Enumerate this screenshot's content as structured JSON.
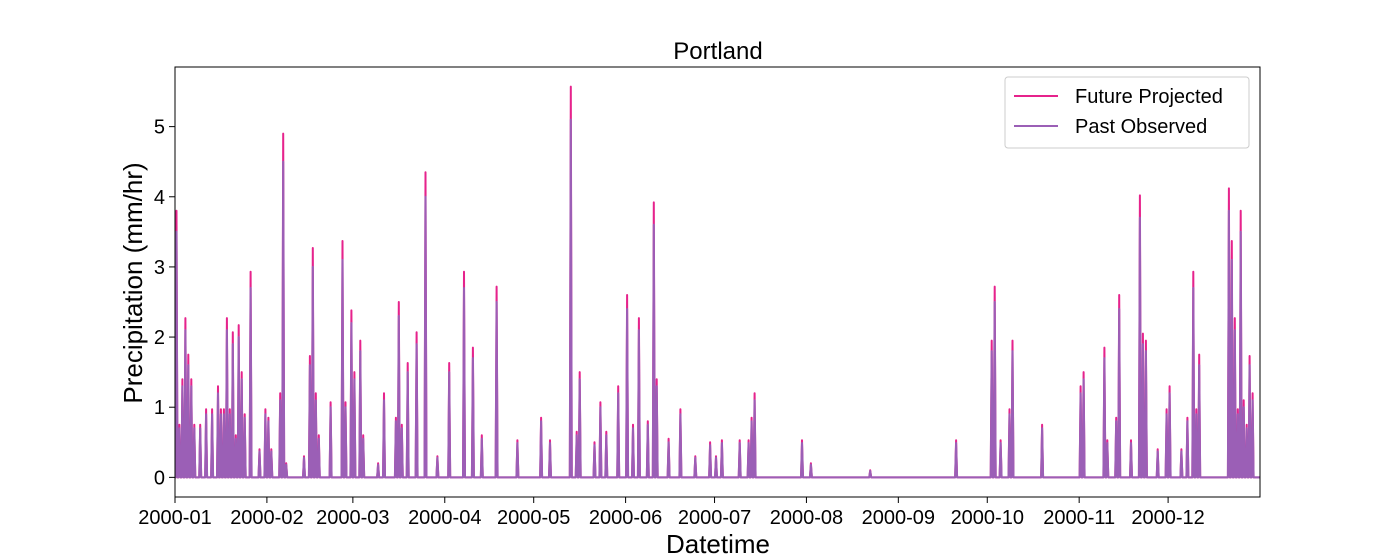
{
  "chart_data": {
    "type": "line",
    "title": "Portland",
    "xlabel": "Datetime",
    "ylabel": "Precipitation (mm/hr)",
    "xlim": [
      "2000-01-01",
      "2000-12-31"
    ],
    "ylim": [
      -0.28,
      5.85
    ],
    "x_tick_labels": [
      "2000-01",
      "2000-02",
      "2000-03",
      "2000-04",
      "2000-05",
      "2000-06",
      "2000-07",
      "2000-08",
      "2000-09",
      "2000-10",
      "2000-11",
      "2000-12"
    ],
    "y_ticks": [
      0,
      1,
      2,
      3,
      4,
      5
    ],
    "grid": false,
    "legend_position": "top-right",
    "series": [
      {
        "name": "Future Projected",
        "color": "#e6238c",
        "points": [
          [
            "2000-01-01",
            3.8
          ],
          [
            "2000-01-02",
            0.75
          ],
          [
            "2000-01-03",
            1.4
          ],
          [
            "2000-01-04",
            2.27
          ],
          [
            "2000-01-05",
            1.75
          ],
          [
            "2000-01-06",
            1.4
          ],
          [
            "2000-01-07",
            0.75
          ],
          [
            "2000-01-09",
            0.75
          ],
          [
            "2000-01-11",
            0.97
          ],
          [
            "2000-01-13",
            0.97
          ],
          [
            "2000-01-15",
            1.3
          ],
          [
            "2000-01-16",
            0.97
          ],
          [
            "2000-01-17",
            0.97
          ],
          [
            "2000-01-18",
            2.27
          ],
          [
            "2000-01-19",
            0.97
          ],
          [
            "2000-01-20",
            2.07
          ],
          [
            "2000-01-21",
            0.6
          ],
          [
            "2000-01-22",
            2.17
          ],
          [
            "2000-01-23",
            1.5
          ],
          [
            "2000-01-24",
            0.9
          ],
          [
            "2000-01-26",
            2.93
          ],
          [
            "2000-01-29",
            0.4
          ],
          [
            "2000-01-31",
            0.97
          ],
          [
            "2000-02-01",
            0.85
          ],
          [
            "2000-02-02",
            0.4
          ],
          [
            "2000-02-05",
            1.2
          ],
          [
            "2000-02-06",
            4.9
          ],
          [
            "2000-02-07",
            0.2
          ],
          [
            "2000-02-13",
            0.3
          ],
          [
            "2000-02-15",
            1.73
          ],
          [
            "2000-02-16",
            3.27
          ],
          [
            "2000-02-17",
            1.2
          ],
          [
            "2000-02-18",
            0.6
          ],
          [
            "2000-02-22",
            1.07
          ],
          [
            "2000-02-26",
            3.37
          ],
          [
            "2000-02-27",
            1.07
          ],
          [
            "2000-02-29",
            2.38
          ],
          [
            "2000-03-01",
            1.5
          ],
          [
            "2000-03-03",
            1.95
          ],
          [
            "2000-03-04",
            0.6
          ],
          [
            "2000-03-09",
            0.2
          ],
          [
            "2000-03-11",
            1.2
          ],
          [
            "2000-03-15",
            0.85
          ],
          [
            "2000-03-16",
            2.5
          ],
          [
            "2000-03-17",
            0.75
          ],
          [
            "2000-03-19",
            1.63
          ],
          [
            "2000-03-22",
            2.07
          ],
          [
            "2000-03-25",
            4.35
          ],
          [
            "2000-03-29",
            0.3
          ],
          [
            "2000-04-02",
            1.63
          ],
          [
            "2000-04-07",
            2.93
          ],
          [
            "2000-04-10",
            1.85
          ],
          [
            "2000-04-13",
            0.6
          ],
          [
            "2000-04-18",
            2.72
          ],
          [
            "2000-04-25",
            0.53
          ],
          [
            "2000-05-03",
            0.85
          ],
          [
            "2000-05-06",
            0.53
          ],
          [
            "2000-05-13",
            5.57
          ],
          [
            "2000-05-15",
            0.65
          ],
          [
            "2000-05-16",
            1.5
          ],
          [
            "2000-05-21",
            0.5
          ],
          [
            "2000-05-23",
            1.07
          ],
          [
            "2000-05-25",
            0.65
          ],
          [
            "2000-05-29",
            1.3
          ],
          [
            "2000-06-01",
            2.6
          ],
          [
            "2000-06-03",
            0.75
          ],
          [
            "2000-06-05",
            2.27
          ],
          [
            "2000-06-08",
            0.8
          ],
          [
            "2000-06-10",
            3.92
          ],
          [
            "2000-06-11",
            1.4
          ],
          [
            "2000-06-15",
            0.55
          ],
          [
            "2000-06-19",
            0.97
          ],
          [
            "2000-06-24",
            0.3
          ],
          [
            "2000-06-29",
            0.5
          ],
          [
            "2000-07-01",
            0.3
          ],
          [
            "2000-07-03",
            0.53
          ],
          [
            "2000-07-09",
            0.53
          ],
          [
            "2000-07-12",
            0.53
          ],
          [
            "2000-07-13",
            0.85
          ],
          [
            "2000-07-14",
            1.2
          ],
          [
            "2000-07-30",
            0.53
          ],
          [
            "2000-08-02",
            0.2
          ],
          [
            "2000-08-22",
            0.1
          ],
          [
            "2000-09-20",
            0.53
          ],
          [
            "2000-10-02",
            1.95
          ],
          [
            "2000-10-03",
            2.72
          ],
          [
            "2000-10-05",
            0.53
          ],
          [
            "2000-10-08",
            0.97
          ],
          [
            "2000-10-09",
            1.95
          ],
          [
            "2000-10-19",
            0.75
          ],
          [
            "2000-11-01",
            1.3
          ],
          [
            "2000-11-02",
            1.5
          ],
          [
            "2000-11-09",
            1.85
          ],
          [
            "2000-11-10",
            0.53
          ],
          [
            "2000-11-13",
            0.85
          ],
          [
            "2000-11-14",
            2.6
          ],
          [
            "2000-11-18",
            0.53
          ],
          [
            "2000-11-21",
            4.02
          ],
          [
            "2000-11-22",
            2.05
          ],
          [
            "2000-11-23",
            1.95
          ],
          [
            "2000-11-27",
            0.4
          ],
          [
            "2000-11-30",
            0.97
          ],
          [
            "2000-12-01",
            1.3
          ],
          [
            "2000-12-05",
            0.4
          ],
          [
            "2000-12-07",
            0.85
          ],
          [
            "2000-12-09",
            2.93
          ],
          [
            "2000-12-10",
            0.97
          ],
          [
            "2000-12-11",
            1.75
          ],
          [
            "2000-12-21",
            4.12
          ],
          [
            "2000-12-22",
            3.37
          ],
          [
            "2000-12-23",
            2.27
          ],
          [
            "2000-12-24",
            0.97
          ],
          [
            "2000-12-25",
            3.8
          ],
          [
            "2000-12-26",
            1.1
          ],
          [
            "2000-12-27",
            0.75
          ],
          [
            "2000-12-28",
            1.73
          ],
          [
            "2000-12-29",
            1.2
          ]
        ]
      },
      {
        "name": "Past Observed",
        "color": "#9b5fb6",
        "points": [
          [
            "2000-01-01",
            3.5
          ],
          [
            "2000-01-02",
            0.7
          ],
          [
            "2000-01-03",
            1.3
          ],
          [
            "2000-01-04",
            2.1
          ],
          [
            "2000-01-05",
            1.6
          ],
          [
            "2000-01-06",
            1.3
          ],
          [
            "2000-01-07",
            0.7
          ],
          [
            "2000-01-09",
            0.7
          ],
          [
            "2000-01-11",
            0.9
          ],
          [
            "2000-01-13",
            0.9
          ],
          [
            "2000-01-15",
            1.2
          ],
          [
            "2000-01-16",
            0.9
          ],
          [
            "2000-01-17",
            0.9
          ],
          [
            "2000-01-18",
            2.1
          ],
          [
            "2000-01-19",
            0.9
          ],
          [
            "2000-01-20",
            1.9
          ],
          [
            "2000-01-21",
            0.55
          ],
          [
            "2000-01-22",
            2.0
          ],
          [
            "2000-01-23",
            1.4
          ],
          [
            "2000-01-24",
            0.85
          ],
          [
            "2000-01-26",
            2.7
          ],
          [
            "2000-01-29",
            0.37
          ],
          [
            "2000-01-31",
            0.9
          ],
          [
            "2000-02-01",
            0.8
          ],
          [
            "2000-02-02",
            0.37
          ],
          [
            "2000-02-05",
            1.1
          ],
          [
            "2000-02-06",
            4.5
          ],
          [
            "2000-02-07",
            0.18
          ],
          [
            "2000-02-13",
            0.28
          ],
          [
            "2000-02-15",
            1.6
          ],
          [
            "2000-02-16",
            3.0
          ],
          [
            "2000-02-17",
            1.1
          ],
          [
            "2000-02-18",
            0.55
          ],
          [
            "2000-02-22",
            1.0
          ],
          [
            "2000-02-26",
            3.1
          ],
          [
            "2000-02-27",
            1.0
          ],
          [
            "2000-02-29",
            2.2
          ],
          [
            "2000-03-01",
            1.4
          ],
          [
            "2000-03-03",
            1.8
          ],
          [
            "2000-03-04",
            0.55
          ],
          [
            "2000-03-09",
            0.18
          ],
          [
            "2000-03-11",
            1.1
          ],
          [
            "2000-03-15",
            0.8
          ],
          [
            "2000-03-16",
            2.3
          ],
          [
            "2000-03-17",
            0.7
          ],
          [
            "2000-03-19",
            1.5
          ],
          [
            "2000-03-22",
            1.9
          ],
          [
            "2000-03-25",
            4.0
          ],
          [
            "2000-03-29",
            0.28
          ],
          [
            "2000-04-02",
            1.5
          ],
          [
            "2000-04-07",
            2.7
          ],
          [
            "2000-04-10",
            1.7
          ],
          [
            "2000-04-13",
            0.55
          ],
          [
            "2000-04-18",
            2.5
          ],
          [
            "2000-04-25",
            0.49
          ],
          [
            "2000-05-03",
            0.8
          ],
          [
            "2000-05-06",
            0.49
          ],
          [
            "2000-05-13",
            5.1
          ],
          [
            "2000-05-15",
            0.6
          ],
          [
            "2000-05-16",
            1.4
          ],
          [
            "2000-05-21",
            0.46
          ],
          [
            "2000-05-23",
            1.0
          ],
          [
            "2000-05-25",
            0.6
          ],
          [
            "2000-05-29",
            1.2
          ],
          [
            "2000-06-01",
            2.4
          ],
          [
            "2000-06-03",
            0.7
          ],
          [
            "2000-06-05",
            2.1
          ],
          [
            "2000-06-08",
            0.75
          ],
          [
            "2000-06-10",
            3.6
          ],
          [
            "2000-06-11",
            1.3
          ],
          [
            "2000-06-15",
            0.5
          ],
          [
            "2000-06-19",
            0.9
          ],
          [
            "2000-06-24",
            0.28
          ],
          [
            "2000-06-29",
            0.46
          ],
          [
            "2000-07-01",
            0.28
          ],
          [
            "2000-07-03",
            0.49
          ],
          [
            "2000-07-09",
            0.49
          ],
          [
            "2000-07-12",
            0.49
          ],
          [
            "2000-07-13",
            0.8
          ],
          [
            "2000-07-14",
            1.1
          ],
          [
            "2000-07-30",
            0.49
          ],
          [
            "2000-08-02",
            0.18
          ],
          [
            "2000-08-22",
            0.09
          ],
          [
            "2000-09-20",
            0.49
          ],
          [
            "2000-10-02",
            1.8
          ],
          [
            "2000-10-03",
            2.5
          ],
          [
            "2000-10-05",
            0.49
          ],
          [
            "2000-10-08",
            0.9
          ],
          [
            "2000-10-09",
            1.8
          ],
          [
            "2000-10-19",
            0.7
          ],
          [
            "2000-11-01",
            1.2
          ],
          [
            "2000-11-02",
            1.4
          ],
          [
            "2000-11-09",
            1.7
          ],
          [
            "2000-11-10",
            0.49
          ],
          [
            "2000-11-13",
            0.8
          ],
          [
            "2000-11-14",
            2.4
          ],
          [
            "2000-11-18",
            0.49
          ],
          [
            "2000-11-21",
            3.7
          ],
          [
            "2000-11-22",
            1.9
          ],
          [
            "2000-11-23",
            1.8
          ],
          [
            "2000-11-27",
            0.37
          ],
          [
            "2000-11-30",
            0.9
          ],
          [
            "2000-12-01",
            1.2
          ],
          [
            "2000-12-05",
            0.37
          ],
          [
            "2000-12-07",
            0.8
          ],
          [
            "2000-12-09",
            2.7
          ],
          [
            "2000-12-10",
            0.9
          ],
          [
            "2000-12-11",
            1.6
          ],
          [
            "2000-12-21",
            3.8
          ],
          [
            "2000-12-22",
            3.1
          ],
          [
            "2000-12-23",
            2.1
          ],
          [
            "2000-12-24",
            0.9
          ],
          [
            "2000-12-25",
            3.5
          ],
          [
            "2000-12-26",
            1.0
          ],
          [
            "2000-12-27",
            0.7
          ],
          [
            "2000-12-28",
            1.6
          ],
          [
            "2000-12-29",
            1.1
          ]
        ]
      }
    ]
  }
}
